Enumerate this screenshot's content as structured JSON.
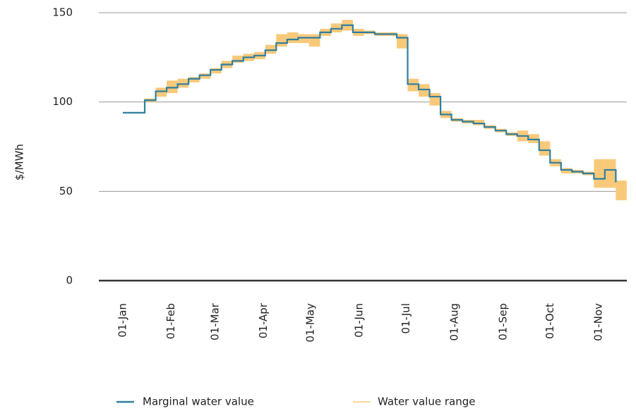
{
  "chart_data": {
    "type": "line",
    "y_label": "$/MWh",
    "x": [
      "01-Jan",
      "08-Jan",
      "15-Jan",
      "22-Jan",
      "29-Jan",
      "05-Feb",
      "12-Feb",
      "19-Feb",
      "26-Feb",
      "05-Mar",
      "12-Mar",
      "19-Mar",
      "26-Mar",
      "02-Apr",
      "09-Apr",
      "16-Apr",
      "23-Apr",
      "30-Apr",
      "07-May",
      "14-May",
      "21-May",
      "28-May",
      "04-Jun",
      "11-Jun",
      "18-Jun",
      "25-Jun",
      "02-Jul",
      "09-Jul",
      "16-Jul",
      "23-Jul",
      "30-Jul",
      "06-Aug",
      "13-Aug",
      "20-Aug",
      "27-Aug",
      "03-Sep",
      "10-Sep",
      "17-Sep",
      "24-Sep",
      "01-Oct",
      "08-Oct",
      "15-Oct",
      "22-Oct",
      "29-Oct",
      "05-Nov",
      "12-Nov"
    ],
    "series": [
      {
        "name": "Marginal water value",
        "color": "#2e7fa0",
        "values": [
          94,
          94,
          101,
          106,
          108,
          110,
          113,
          115,
          118,
          121,
          123,
          125,
          126,
          129,
          133,
          135,
          136,
          136,
          139,
          141,
          143,
          139,
          139,
          138,
          138,
          136,
          110,
          107,
          103,
          93,
          90,
          89,
          88,
          86,
          84,
          82,
          81,
          79,
          73,
          66,
          62,
          61,
          60,
          57,
          62,
          55
        ]
      },
      {
        "name": "Water value range",
        "color": "#f9c97a",
        "low": [
          94,
          94,
          100,
          103,
          105,
          108,
          111,
          113,
          116,
          119,
          122,
          123,
          124,
          127,
          131,
          133,
          133,
          131,
          137,
          139,
          140,
          137,
          138,
          137,
          137,
          130,
          106,
          103,
          98,
          91,
          89,
          88,
          87,
          85,
          83,
          81,
          78,
          77,
          70,
          64,
          60,
          60,
          59,
          52,
          52,
          45
        ],
        "high": [
          94,
          94,
          102,
          108,
          112,
          113,
          114,
          116,
          119,
          123,
          126,
          127,
          128,
          132,
          138,
          139,
          138,
          138,
          141,
          144,
          146,
          141,
          140,
          139,
          139,
          138,
          113,
          110,
          105,
          95,
          91,
          90,
          90,
          87,
          85,
          83,
          84,
          82,
          78,
          68,
          63,
          62,
          61,
          68,
          68,
          56
        ]
      }
    ],
    "ylim": [
      0,
      150
    ],
    "yticks": [
      0,
      50,
      100,
      150
    ],
    "xticks": [
      "01-Jan",
      "01-Feb",
      "01-Mar",
      "01-Apr",
      "01-May",
      "01-Jun",
      "01-Jul",
      "01-Aug",
      "01-Sep",
      "01-Oct",
      "01-Nov"
    ],
    "grid": true
  }
}
